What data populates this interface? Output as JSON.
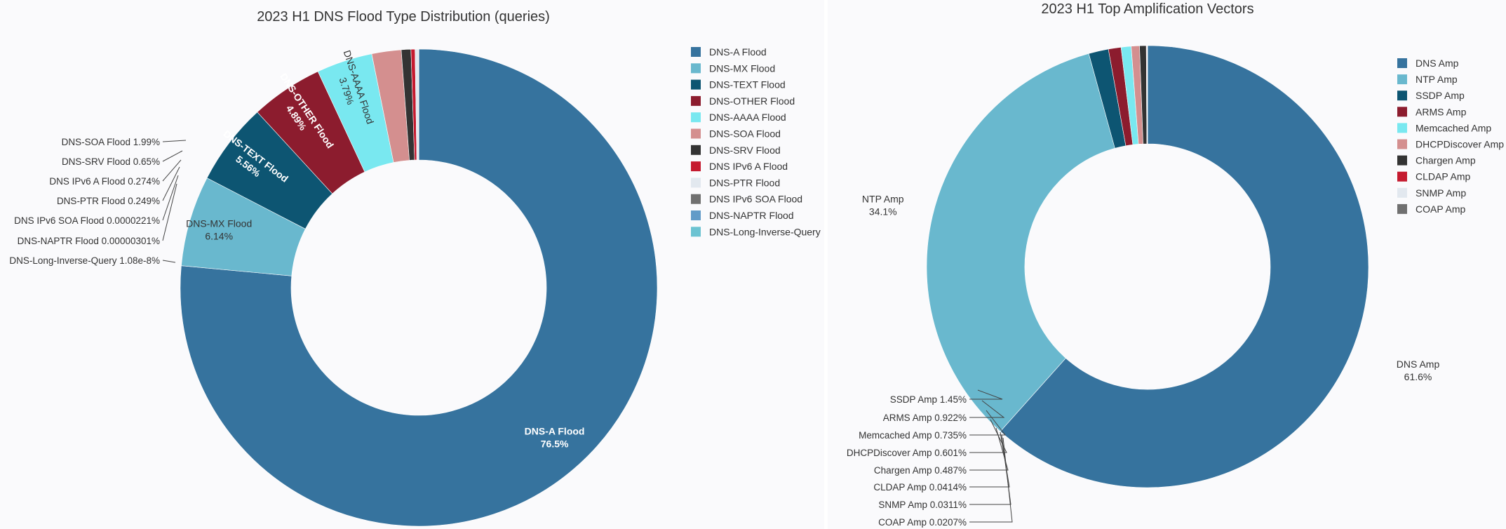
{
  "chart_data": [
    {
      "type": "pie",
      "variant": "donut",
      "title": "2023 H1 DNS Flood Type Distribution (queries)",
      "legend": "right",
      "slices": [
        {
          "name": "DNS-A Flood",
          "value": 76.5,
          "value_label": "76.5%",
          "color": "#36739e"
        },
        {
          "name": "DNS-MX Flood",
          "value": 6.14,
          "value_label": "6.14%",
          "color": "#69b8ce"
        },
        {
          "name": "DNS-TEXT Flood",
          "value": 5.56,
          "value_label": "5.56%",
          "color": "#0d5572"
        },
        {
          "name": "DNS-OTHER Flood",
          "value": 4.89,
          "value_label": "4.89%",
          "color": "#8c1c2e"
        },
        {
          "name": "DNS-AAAA Flood",
          "value": 3.79,
          "value_label": "3.79%",
          "color": "#79e8f0"
        },
        {
          "name": "DNS-SOA Flood",
          "value": 1.99,
          "value_label": "1.99%",
          "color": "#d48f8f"
        },
        {
          "name": "DNS-SRV Flood",
          "value": 0.65,
          "value_label": "0.65%",
          "color": "#333333"
        },
        {
          "name": "DNS IPv6 A Flood",
          "value": 0.274,
          "value_label": "0.274%",
          "color": "#c51a2f"
        },
        {
          "name": "DNS-PTR Flood",
          "value": 0.249,
          "value_label": "0.249%",
          "color": "#e2e8ef"
        },
        {
          "name": "DNS IPv6 SOA Flood",
          "value": 2.21e-05,
          "value_label": "0.0000221%",
          "color": "#707070"
        },
        {
          "name": "DNS-NAPTR Flood",
          "value": 3.01e-06,
          "value_label": "0.00000301%",
          "color": "#629bc8"
        },
        {
          "name": "DNS-Long-Inverse-Query",
          "value": 1.08e-08,
          "value_label": "1.08e-8%",
          "color": "#6cc3d2"
        }
      ]
    },
    {
      "type": "pie",
      "variant": "donut",
      "title": "2023 H1 Top Amplification Vectors",
      "legend": "right",
      "slices": [
        {
          "name": "DNS Amp",
          "value": 61.6,
          "value_label": "61.6%",
          "color": "#36739e"
        },
        {
          "name": "NTP Amp",
          "value": 34.1,
          "value_label": "34.1%",
          "color": "#69b8ce"
        },
        {
          "name": "SSDP Amp",
          "value": 1.45,
          "value_label": "1.45%",
          "color": "#0d5572"
        },
        {
          "name": "ARMS Amp",
          "value": 0.922,
          "value_label": "0.922%",
          "color": "#8c1c2e"
        },
        {
          "name": "Memcached Amp",
          "value": 0.735,
          "value_label": "0.735%",
          "color": "#79e8f0"
        },
        {
          "name": "DHCPDiscover Amp",
          "value": 0.601,
          "value_label": "0.601%",
          "color": "#d48f8f"
        },
        {
          "name": "Chargen Amp",
          "value": 0.487,
          "value_label": "0.487%",
          "color": "#333333"
        },
        {
          "name": "CLDAP Amp",
          "value": 0.0414,
          "value_label": "0.0414%",
          "color": "#c51a2f"
        },
        {
          "name": "SNMP Amp",
          "value": 0.0311,
          "value_label": "0.0311%",
          "color": "#e2e8ef"
        },
        {
          "name": "COAP Amp",
          "value": 0.0207,
          "value_label": "0.0207%",
          "color": "#707070"
        }
      ]
    }
  ]
}
